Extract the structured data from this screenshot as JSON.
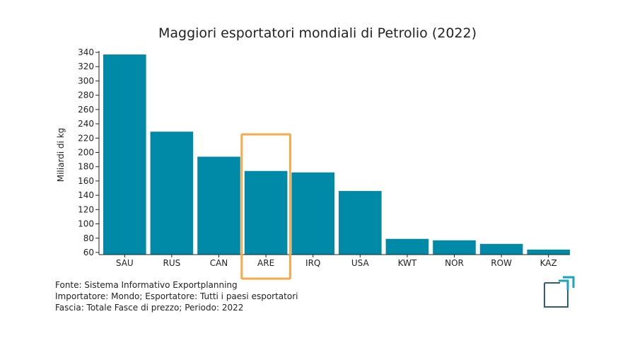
{
  "chart_data": {
    "type": "bar",
    "title": "Maggiori esportatori mondiali di Petrolio (2022)",
    "xlabel": "",
    "ylabel": "Miliardi di kg",
    "categories": [
      "SAU",
      "RUS",
      "CAN",
      "ARE",
      "IRQ",
      "USA",
      "KWT",
      "NOR",
      "ROW",
      "KAZ"
    ],
    "values": [
      337,
      229,
      194,
      174,
      172,
      146,
      79,
      77,
      72,
      64
    ],
    "ylim": [
      57,
      342
    ],
    "yticks": [
      60,
      80,
      100,
      120,
      140,
      160,
      180,
      200,
      220,
      240,
      260,
      280,
      300,
      320,
      340
    ],
    "bar_color": "#008aa8",
    "highlight": {
      "category": "ARE",
      "color": "#f5ab4b"
    },
    "grid": false
  },
  "footer": {
    "lines": [
      "Fonte: Sistema Informativo Exportplanning",
      "Importatore: Mondo; Esportatore: Tutti i paesi esportatori",
      "Fascia: Totale Fasce di prezzo; Periodo: 2022"
    ]
  },
  "logo": {
    "color_dark": "#2f5f73",
    "color_accent": "#1aa3c2"
  }
}
